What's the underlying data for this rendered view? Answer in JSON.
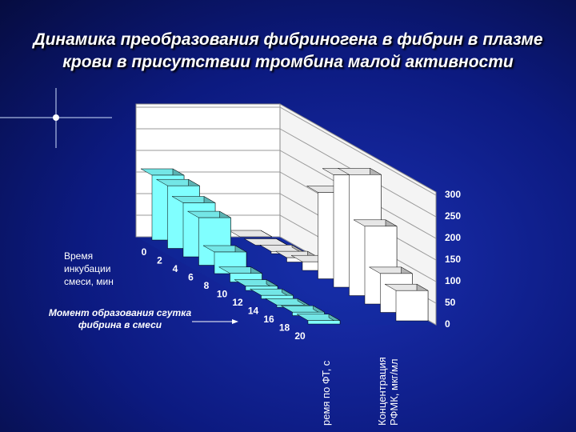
{
  "chart_data": {
    "type": "bar3d",
    "title": "Динамика преобразования фибриногена в фибрин в плазме крови в присутствии тромбина малой активности",
    "x_label": "Время инкубации смеси, мин",
    "annotation": "Момент образования сгутка фибрина в смеси",
    "categories": [
      0,
      2,
      4,
      6,
      8,
      10,
      12,
      14,
      16,
      18,
      20
    ],
    "series": [
      {
        "name": "ремя по ФТ, с",
        "color": "#80ffff",
        "values": [
          150,
          145,
          125,
          110,
          50,
          20,
          10,
          8,
          5,
          8,
          8
        ]
      },
      {
        "name": "Концентрация РФМК, мкг/мл",
        "color": "#ffffff",
        "values": [
          0,
          0,
          5,
          10,
          20,
          200,
          260,
          280,
          180,
          90,
          70
        ]
      }
    ],
    "ylim": [
      0,
      300
    ],
    "yticks": [
      0,
      50,
      100,
      150,
      200,
      250,
      300
    ],
    "grid": true
  }
}
